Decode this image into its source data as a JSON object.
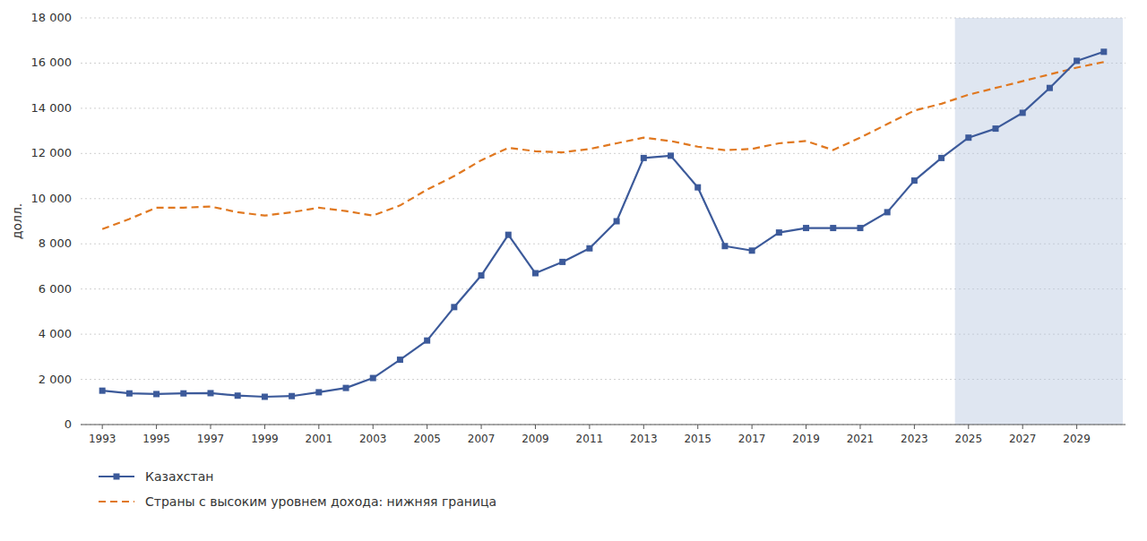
{
  "chart_data": {
    "type": "line",
    "y_label": "долл.",
    "x": [
      1993,
      1994,
      1995,
      1996,
      1997,
      1998,
      1999,
      2000,
      2001,
      2002,
      2003,
      2004,
      2005,
      2006,
      2007,
      2008,
      2009,
      2010,
      2011,
      2012,
      2013,
      2014,
      2015,
      2016,
      2017,
      2018,
      2019,
      2020,
      2021,
      2022,
      2023,
      2024,
      2025,
      2026,
      2027,
      2028,
      2029,
      2030
    ],
    "series": [
      {
        "name": "Казахстан",
        "color": "#3C5A9A",
        "marker": "square",
        "line_style": "solid",
        "values": [
          1500,
          1380,
          1350,
          1380,
          1390,
          1280,
          1230,
          1260,
          1430,
          1620,
          2060,
          2870,
          3720,
          5200,
          6600,
          8400,
          6700,
          7200,
          7800,
          9000,
          11800,
          11900,
          10500,
          7900,
          7700,
          8500,
          8700,
          8700,
          8700,
          9400,
          10800,
          11800,
          12700,
          13100,
          13800,
          14900,
          16100,
          16500
        ]
      },
      {
        "name": "Страны с высоким уровнем дохода: нижняя граница",
        "color": "#E07820",
        "marker": "none",
        "line_style": "dashed",
        "values": [
          8650,
          9100,
          9600,
          9600,
          9650,
          9400,
          9250,
          9400,
          9600,
          9450,
          9250,
          9700,
          10400,
          11000,
          11700,
          12250,
          12100,
          12050,
          12200,
          12450,
          12700,
          12550,
          12300,
          12150,
          12200,
          12450,
          12550,
          12150,
          12700,
          13300,
          13900,
          14200,
          14600,
          14900,
          15200,
          15500,
          15800,
          16050
        ]
      }
    ],
    "shade": {
      "x": [
        2025,
        2030
      ],
      "color": "#b8c8e0"
    },
    "xlim": [
      1992.2,
      2030.8
    ],
    "xticks": [
      1993,
      1995,
      1997,
      1999,
      2001,
      2003,
      2005,
      2007,
      2009,
      2011,
      2013,
      2015,
      2017,
      2019,
      2021,
      2023,
      2025,
      2027,
      2029
    ],
    "ylim": [
      0,
      18000
    ],
    "yticks": [
      0,
      {
        "value": 2000,
        "label": "2 000"
      },
      {
        "value": 4000,
        "label": "4 000"
      },
      {
        "value": 6000,
        "label": "6 000"
      },
      {
        "value": 8000,
        "label": "8 000"
      },
      {
        "value": 10000,
        "label": "10 000"
      },
      {
        "value": 12000,
        "label": "12 000"
      },
      {
        "value": 14000,
        "label": "14 000"
      },
      {
        "value": 16000,
        "label": "16 000"
      },
      {
        "value": 18000,
        "label": "18 000"
      }
    ],
    "grid": true,
    "legend": "bottom"
  }
}
